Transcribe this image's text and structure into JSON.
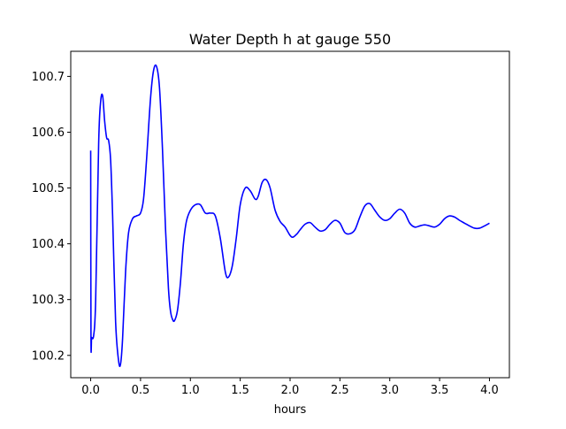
{
  "chart_data": {
    "type": "line",
    "title": "Water Depth h at gauge 550",
    "xlabel": "hours",
    "ylabel": "",
    "xlim": [
      -0.2,
      4.2
    ],
    "ylim": [
      100.16,
      100.745
    ],
    "grid": false,
    "x_ticks": [
      0.0,
      0.5,
      1.0,
      1.5,
      2.0,
      2.5,
      3.0,
      3.5,
      4.0
    ],
    "x_tick_labels": [
      "0.0",
      "0.5",
      "1.0",
      "1.5",
      "2.0",
      "2.5",
      "3.0",
      "3.5",
      "4.0"
    ],
    "y_ticks": [
      100.2,
      100.3,
      100.4,
      100.5,
      100.6,
      100.7
    ],
    "y_tick_labels": [
      "100.2",
      "100.3",
      "100.4",
      "100.5",
      "100.6",
      "100.7"
    ],
    "series": [
      {
        "color": "#0000ff",
        "x": [
          0.0,
          0.003,
          0.01,
          0.03,
          0.05,
          0.08,
          0.1,
          0.12,
          0.14,
          0.16,
          0.18,
          0.2,
          0.22,
          0.25,
          0.28,
          0.3,
          0.32,
          0.35,
          0.38,
          0.42,
          0.46,
          0.5,
          0.53,
          0.56,
          0.6,
          0.63,
          0.66,
          0.69,
          0.72,
          0.75,
          0.78,
          0.8,
          0.82,
          0.84,
          0.87,
          0.9,
          0.93,
          0.96,
          1.0,
          1.05,
          1.1,
          1.15,
          1.2,
          1.25,
          1.3,
          1.35,
          1.38,
          1.42,
          1.46,
          1.5,
          1.55,
          1.6,
          1.65,
          1.68,
          1.72,
          1.76,
          1.8,
          1.85,
          1.9,
          1.95,
          2.0,
          2.03,
          2.07,
          2.1,
          2.15,
          2.2,
          2.25,
          2.3,
          2.35,
          2.4,
          2.45,
          2.5,
          2.55,
          2.6,
          2.65,
          2.7,
          2.75,
          2.8,
          2.85,
          2.9,
          2.95,
          3.0,
          3.05,
          3.1,
          3.15,
          3.2,
          3.25,
          3.3,
          3.35,
          3.4,
          3.45,
          3.5,
          3.55,
          3.6,
          3.65,
          3.7,
          3.75,
          3.8,
          3.85,
          3.9,
          3.95,
          4.0
        ],
        "y": [
          100.567,
          100.23,
          100.232,
          100.236,
          100.3,
          100.58,
          100.655,
          100.665,
          100.62,
          100.59,
          100.585,
          100.55,
          100.45,
          100.26,
          100.19,
          100.185,
          100.23,
          100.35,
          100.42,
          100.445,
          100.45,
          100.455,
          100.48,
          100.55,
          100.66,
          100.71,
          100.718,
          100.68,
          100.57,
          100.43,
          100.32,
          100.28,
          100.265,
          100.262,
          100.28,
          100.33,
          100.4,
          100.44,
          100.46,
          100.47,
          100.47,
          100.455,
          100.455,
          100.45,
          100.41,
          100.35,
          100.34,
          100.36,
          100.41,
          100.47,
          100.5,
          100.495,
          100.48,
          100.485,
          100.51,
          100.515,
          100.5,
          100.46,
          100.44,
          100.43,
          100.415,
          100.412,
          100.418,
          100.425,
          100.435,
          100.438,
          100.43,
          100.423,
          100.425,
          100.435,
          100.442,
          100.437,
          100.42,
          100.418,
          100.425,
          100.448,
          100.468,
          100.472,
          100.46,
          100.448,
          100.442,
          100.445,
          100.455,
          100.462,
          100.455,
          100.437,
          100.43,
          100.432,
          100.434,
          100.432,
          100.43,
          100.435,
          100.445,
          100.45,
          100.448,
          100.442,
          100.437,
          100.432,
          100.428,
          100.428,
          100.432,
          100.437
        ]
      }
    ]
  }
}
